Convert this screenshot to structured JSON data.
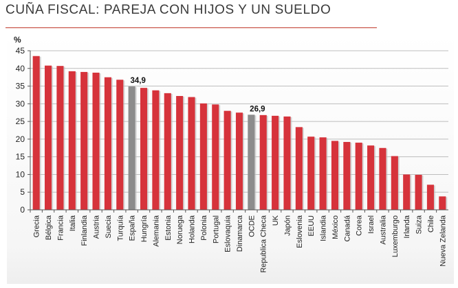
{
  "title": "CUÑA FISCAL: PAREJA CON HIJOS Y UN SUELDO",
  "colors": {
    "bar": "#d6333b",
    "highlight": "#8c8c8c",
    "title_rule": "#c0392b",
    "grid": "#bdbdbd"
  },
  "chart_data": {
    "type": "bar",
    "ylabel": "%",
    "ylim": [
      0,
      45
    ],
    "yticks": [
      0,
      5,
      10,
      15,
      20,
      25,
      30,
      35,
      40,
      45
    ],
    "grid": true,
    "categories": [
      "Grecia",
      "Bélgica",
      "Francia",
      "Italia",
      "Finlandia",
      "Austria",
      "Suecia",
      "Turquía",
      "España",
      "Hungría",
      "Alemania",
      "Estonia",
      "Noruega",
      "Holanda",
      "Polonia",
      "Portugal",
      "Eslovaquia",
      "Dinamarca",
      "OCDE",
      "Republica Checa",
      "UK",
      "Japón",
      "Eslovenia",
      "EEUU",
      "Islandia",
      "México",
      "Canadá",
      "Corea",
      "Israel",
      "Australia",
      "Luxemburgo",
      "Irlanda",
      "Suiza",
      "Chile",
      "Nueva Zelanda"
    ],
    "values": [
      43.5,
      40.8,
      40.7,
      39.2,
      39.0,
      38.8,
      37.5,
      36.8,
      34.9,
      34.5,
      33.8,
      33.0,
      32.2,
      31.9,
      30.1,
      29.8,
      28.0,
      27.5,
      26.9,
      26.8,
      26.6,
      26.4,
      23.4,
      20.7,
      20.5,
      19.5,
      19.2,
      19.0,
      18.2,
      17.5,
      15.2,
      10.0,
      9.9,
      7.1,
      3.8
    ],
    "highlighted": [
      "España",
      "OCDE"
    ],
    "data_labels": [
      {
        "category": "España",
        "text": "34,9"
      },
      {
        "category": "OCDE",
        "text": "26,9"
      }
    ]
  }
}
